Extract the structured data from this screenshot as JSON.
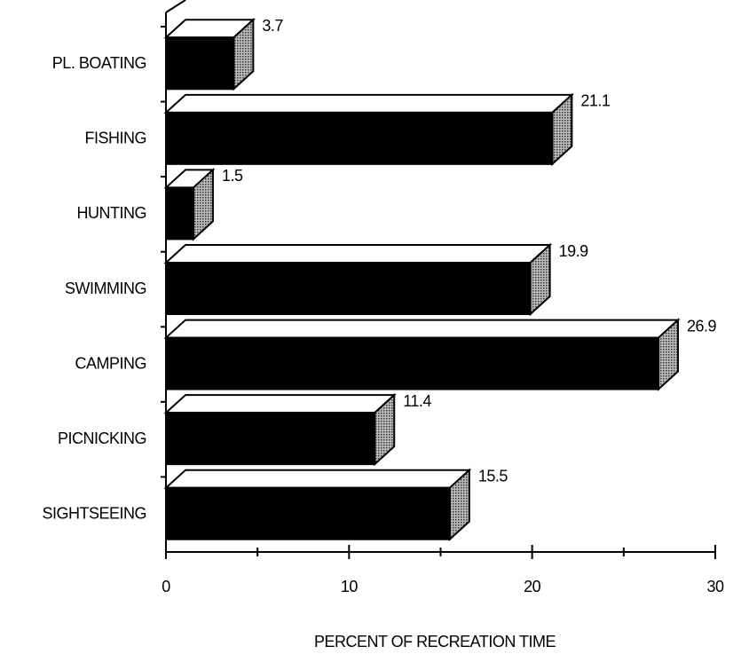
{
  "chart_data": {
    "type": "bar3d_horizontal",
    "categories": [
      "PL. BOATING",
      "FISHING",
      "HUNTING",
      "SWIMMING",
      "CAMPING",
      "PICNICKING",
      "SIGHTSEEING"
    ],
    "values": [
      3.7,
      21.1,
      1.5,
      19.9,
      26.9,
      11.4,
      15.5
    ],
    "xlim": [
      0,
      30
    ],
    "xticks": [
      0,
      10,
      20,
      30
    ],
    "xlabel": "PERCENT OF RECREATION TIME",
    "color": "#000000"
  }
}
